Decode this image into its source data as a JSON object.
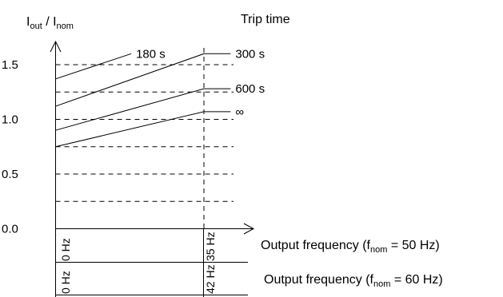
{
  "chart_data": {
    "type": "line",
    "ylabel": {
      "main": "I",
      "sub_out": "out",
      "slash": " / I",
      "sub_nom": "nom"
    },
    "legend_title": "Trip time",
    "yticks": [
      "1.5",
      "1.0",
      "0.5",
      "0.0"
    ],
    "ytick_values": [
      1.5,
      1.0,
      0.5,
      0.0
    ],
    "ylim": [
      0,
      1.6
    ],
    "gridlines_y": [
      0.25,
      0.5,
      0.75,
      1.0,
      1.25,
      1.5
    ],
    "x_marks": [
      {
        "label_50": "0 Hz",
        "label_60": "0 Hz",
        "value": 0
      },
      {
        "label_50": "35 Hz",
        "label_60": "42 Hz",
        "value": 1
      }
    ],
    "series": [
      {
        "name": "180 s",
        "x": [
          0,
          0.51
        ],
        "y": [
          1.37,
          1.6
        ]
      },
      {
        "name": "300 s",
        "x": [
          0,
          1,
          1.18
        ],
        "y": [
          1.12,
          1.6,
          1.6
        ]
      },
      {
        "name": "600 s",
        "x": [
          0,
          1,
          1.18
        ],
        "y": [
          0.9,
          1.28,
          1.28
        ]
      },
      {
        "name": "∞",
        "x": [
          0,
          1,
          1.18
        ],
        "y": [
          0.75,
          1.07,
          1.07
        ]
      }
    ],
    "xlabel_50": {
      "prefix": "Output frequency (f",
      "sub": "nom",
      "suffix": " = 50 Hz)"
    },
    "xlabel_60": {
      "prefix": "Output frequency (f",
      "sub": "nom",
      "suffix": " = 60 Hz)"
    }
  }
}
